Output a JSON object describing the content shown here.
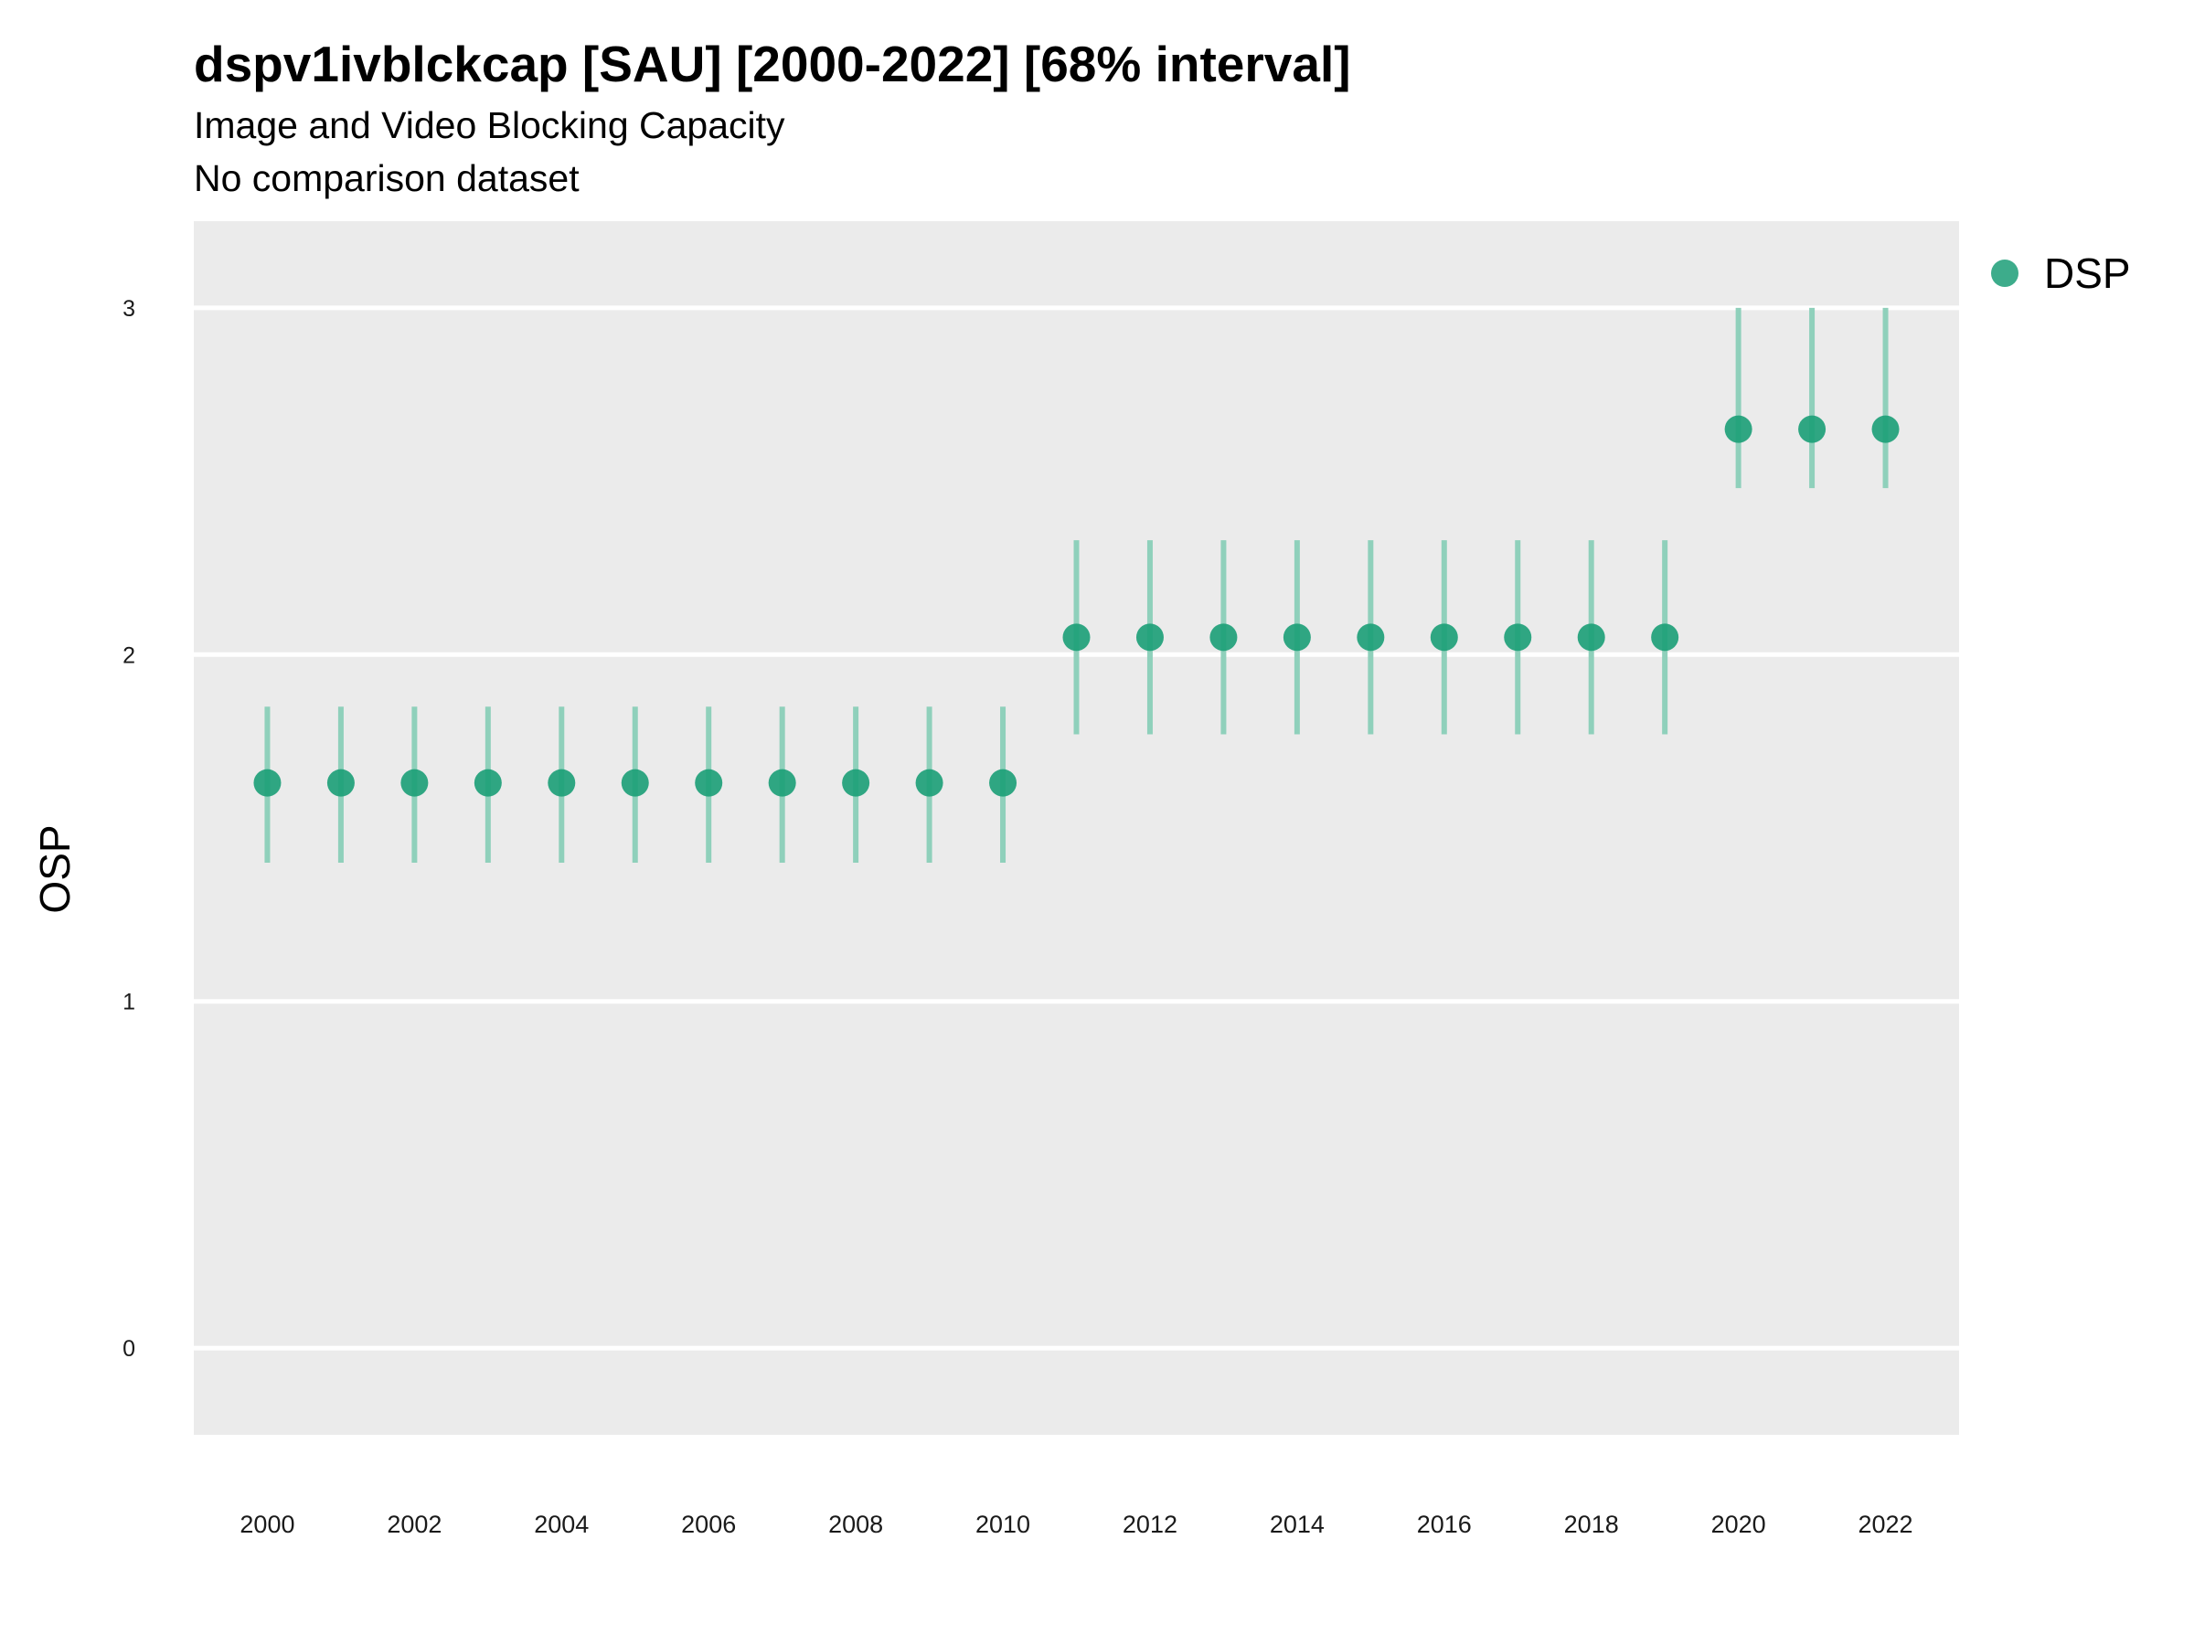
{
  "chart_data": {
    "type": "scatter",
    "title": "dspv1ivblckcap [SAU] [2000-2022] [68% interval]",
    "subtitle": "Image and Video Blocking Capacity",
    "caption": "No comparison dataset",
    "xlabel": "",
    "ylabel": "OSP",
    "xlim": [
      1999,
      2023
    ],
    "ylim": [
      -0.25,
      3.25
    ],
    "x_ticks": [
      2000,
      2002,
      2004,
      2006,
      2008,
      2010,
      2012,
      2014,
      2016,
      2018,
      2020,
      2022
    ],
    "y_ticks": [
      0,
      1,
      2,
      3
    ],
    "grid": true,
    "legend_position": "right",
    "series": [
      {
        "name": "DSP",
        "color": "#1b9e77",
        "points": [
          {
            "x": 2000,
            "y": 1.63,
            "lower": 1.4,
            "upper": 1.85
          },
          {
            "x": 2001,
            "y": 1.63,
            "lower": 1.4,
            "upper": 1.85
          },
          {
            "x": 2002,
            "y": 1.63,
            "lower": 1.4,
            "upper": 1.85
          },
          {
            "x": 2003,
            "y": 1.63,
            "lower": 1.4,
            "upper": 1.85
          },
          {
            "x": 2004,
            "y": 1.63,
            "lower": 1.4,
            "upper": 1.85
          },
          {
            "x": 2005,
            "y": 1.63,
            "lower": 1.4,
            "upper": 1.85
          },
          {
            "x": 2006,
            "y": 1.63,
            "lower": 1.4,
            "upper": 1.85
          },
          {
            "x": 2007,
            "y": 1.63,
            "lower": 1.4,
            "upper": 1.85
          },
          {
            "x": 2008,
            "y": 1.63,
            "lower": 1.4,
            "upper": 1.85
          },
          {
            "x": 2009,
            "y": 1.63,
            "lower": 1.4,
            "upper": 1.85
          },
          {
            "x": 2010,
            "y": 1.63,
            "lower": 1.4,
            "upper": 1.85
          },
          {
            "x": 2011,
            "y": 2.05,
            "lower": 1.77,
            "upper": 2.33
          },
          {
            "x": 2012,
            "y": 2.05,
            "lower": 1.77,
            "upper": 2.33
          },
          {
            "x": 2013,
            "y": 2.05,
            "lower": 1.77,
            "upper": 2.33
          },
          {
            "x": 2014,
            "y": 2.05,
            "lower": 1.77,
            "upper": 2.33
          },
          {
            "x": 2015,
            "y": 2.05,
            "lower": 1.77,
            "upper": 2.33
          },
          {
            "x": 2016,
            "y": 2.05,
            "lower": 1.77,
            "upper": 2.33
          },
          {
            "x": 2017,
            "y": 2.05,
            "lower": 1.77,
            "upper": 2.33
          },
          {
            "x": 2018,
            "y": 2.05,
            "lower": 1.77,
            "upper": 2.33
          },
          {
            "x": 2019,
            "y": 2.05,
            "lower": 1.77,
            "upper": 2.33
          },
          {
            "x": 2020,
            "y": 2.65,
            "lower": 2.48,
            "upper": 3.0
          },
          {
            "x": 2021,
            "y": 2.65,
            "lower": 2.48,
            "upper": 3.0
          },
          {
            "x": 2022,
            "y": 2.65,
            "lower": 2.48,
            "upper": 3.0
          }
        ]
      }
    ]
  },
  "colors": {
    "panel_background": "#ebebeb",
    "grid_line": "#ffffff",
    "point": "#1b9e77",
    "interval": "#8fd0bb"
  }
}
